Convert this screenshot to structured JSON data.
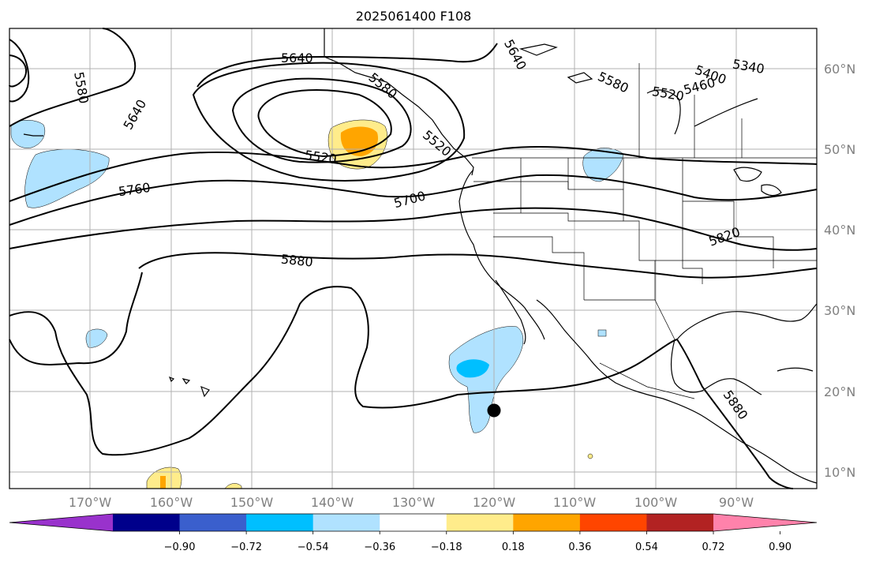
{
  "title": "2025061400 F108",
  "map": {
    "lon_range": [
      -180,
      -80
    ],
    "lat_range": [
      8,
      65
    ],
    "lon_ticks": [
      "170°W",
      "160°W",
      "150°W",
      "140°W",
      "130°W",
      "120°W",
      "110°W",
      "100°W",
      "90°W"
    ],
    "lat_ticks": [
      "60°N",
      "50°N",
      "40°N",
      "30°N",
      "20°N",
      "10°N"
    ],
    "grid": true
  },
  "contours": {
    "labels": [
      "5580",
      "5640",
      "5640",
      "5640",
      "5520",
      "5580",
      "5520",
      "5460",
      "5400",
      "5340",
      "5580",
      "5520",
      "5760",
      "5700",
      "5820",
      "5880",
      "5880"
    ]
  },
  "colorbar": {
    "ticks": [
      "−0.90",
      "−0.72",
      "−0.54",
      "−0.36",
      "−0.18",
      "0.18",
      "0.36",
      "0.54",
      "0.72",
      "0.90"
    ],
    "colors": [
      "#9932cc",
      "#00008b",
      "#3a5fcd",
      "#00bfff",
      "#b0e2ff",
      "#ffffff",
      "#ffec8b",
      "#ffa500",
      "#ff4500",
      "#b22222",
      "#ff82ab"
    ],
    "extend": "both"
  }
}
